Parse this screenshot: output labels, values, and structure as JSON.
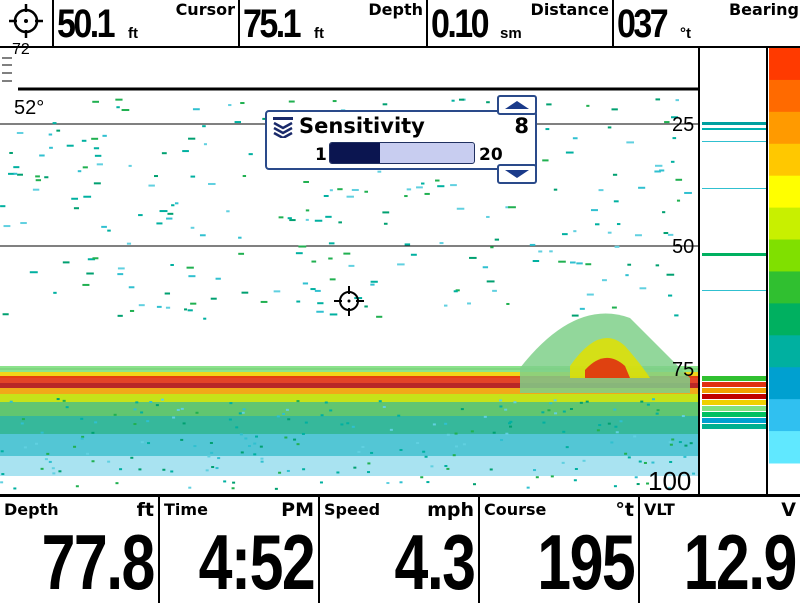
{
  "topbar": {
    "cursor": {
      "value": "50.1",
      "unit": "ft",
      "label": "Cursor"
    },
    "depth": {
      "value": "75.1",
      "unit": "ft",
      "label": "Depth"
    },
    "distance": {
      "value": "0.10",
      "unit": "sm",
      "label": "Distance"
    },
    "bearing": {
      "value": "037",
      "unit": "°t",
      "label": "Bearing"
    }
  },
  "sonar": {
    "range_top_label": "72",
    "temperature": "52°",
    "depth_scale": [
      "25",
      "50",
      "75",
      "100"
    ]
  },
  "sensitivity": {
    "title": "Sensitivity",
    "value": "8",
    "min": "1",
    "max": "20",
    "level_fraction": 0.35
  },
  "bottombar": [
    {
      "label": "Depth",
      "unit": "ft",
      "value": "77.8"
    },
    {
      "label": "Time",
      "unit": "PM",
      "value": "4:52"
    },
    {
      "label": "Speed",
      "unit": "mph",
      "value": "4.3"
    },
    {
      "label": "Course",
      "unit": "°t",
      "value": "195"
    },
    {
      "label": "VLT",
      "unit": "V",
      "value": "12.9"
    }
  ],
  "colors": {
    "accent": "#2a4a8a",
    "slider_fill": "#0b1550",
    "palette": [
      "#ff3a00",
      "#ff6a00",
      "#ff9a00",
      "#ffc800",
      "#ffff00",
      "#c8f000",
      "#80e000",
      "#30c030",
      "#00b060",
      "#00b0a0",
      "#00a0d0",
      "#30c0f0",
      "#60e8ff"
    ]
  },
  "icons": {
    "cursor_target": "crosshair-icon",
    "sensitivity": "sensitivity-chevrons-icon"
  }
}
